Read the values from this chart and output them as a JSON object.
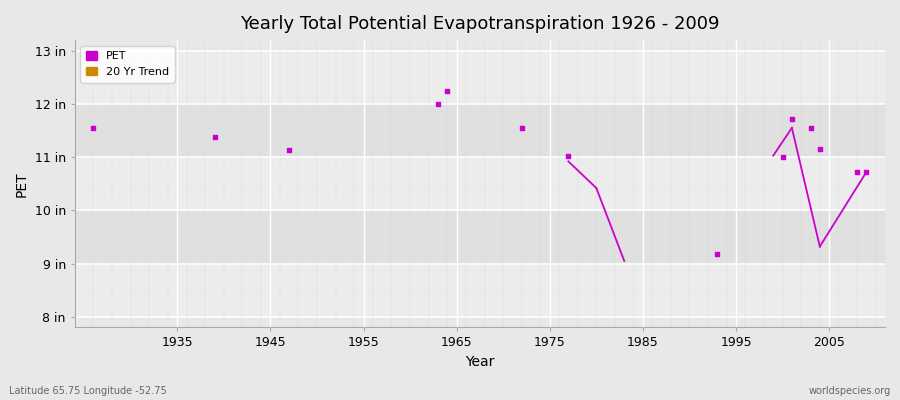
{
  "title": "Yearly Total Potential Evapotranspiration 1926 - 2009",
  "xlabel": "Year",
  "ylabel": "PET",
  "lat_lon_label": "Latitude 65.75 Longitude -52.75",
  "watermark": "worldspecies.org",
  "pet_color": "#cc00cc",
  "trend_color": "#cc00cc",
  "background_color": "#e8e8e8",
  "band_light": "#ececec",
  "band_dark": "#e0e0e0",
  "grid_line_color": "#ffffff",
  "ylim": [
    7.8,
    13.2
  ],
  "xlim": [
    1924,
    2011
  ],
  "yticks": [
    8,
    9,
    10,
    11,
    12,
    13
  ],
  "ytick_labels": [
    "8 in",
    "9 in",
    "10 in",
    "11 in",
    "12 in",
    "13 in"
  ],
  "xticks": [
    1935,
    1945,
    1955,
    1965,
    1975,
    1985,
    1995,
    2005
  ],
  "pet_points": [
    [
      1926,
      11.55
    ],
    [
      1939,
      11.38
    ],
    [
      1947,
      11.13
    ],
    [
      1963,
      12.0
    ],
    [
      1964,
      12.25
    ],
    [
      1972,
      11.55
    ],
    [
      1977,
      11.02
    ],
    [
      1993,
      9.18
    ],
    [
      2000,
      11.0
    ],
    [
      2001,
      11.72
    ],
    [
      2003,
      11.55
    ],
    [
      2004,
      11.15
    ],
    [
      2008,
      10.72
    ],
    [
      2009,
      10.72
    ]
  ],
  "trend_segments": [
    [
      [
        1977,
        10.92
      ],
      [
        1980,
        10.42
      ]
    ],
    [
      [
        1980,
        10.42
      ],
      [
        1983,
        9.05
      ]
    ],
    [
      [
        1993,
        9.18
      ],
      [
        1993,
        9.18
      ]
    ],
    [
      [
        1999,
        11.03
      ],
      [
        2001,
        11.55
      ]
    ],
    [
      [
        2001,
        11.55
      ],
      [
        2004,
        9.32
      ]
    ],
    [
      [
        2004,
        9.32
      ],
      [
        2009,
        10.72
      ]
    ]
  ],
  "title_fontsize": 13,
  "axis_fontsize": 9,
  "label_fontsize": 10
}
